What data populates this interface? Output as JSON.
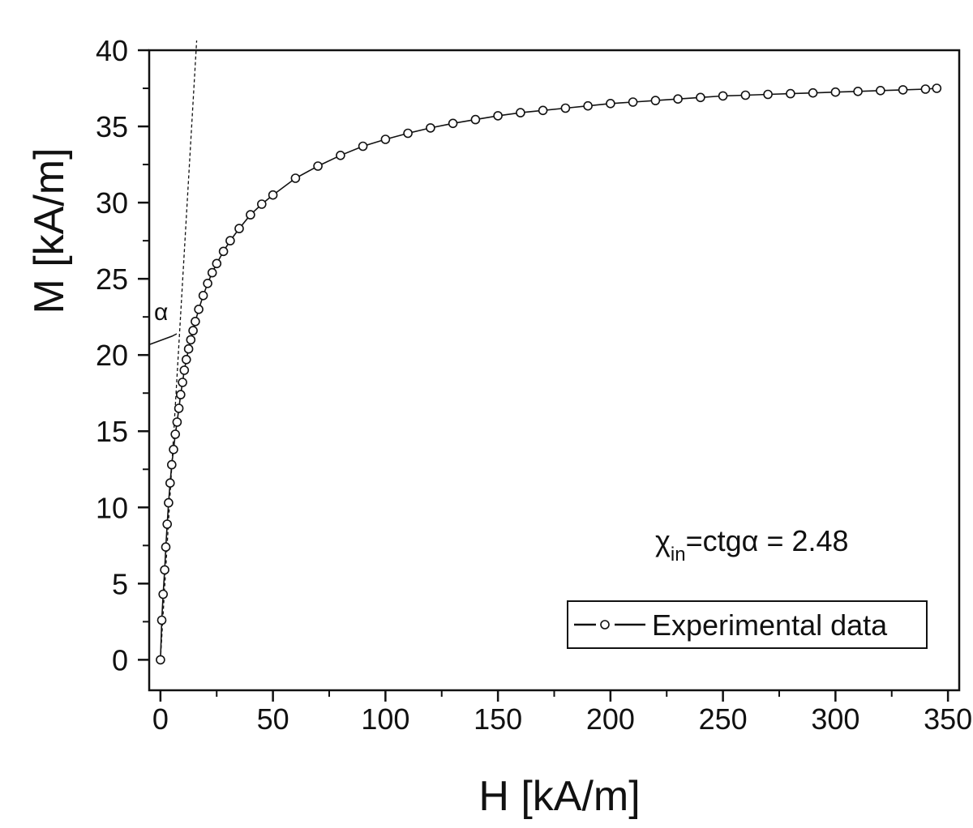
{
  "chart_data": {
    "type": "scatter",
    "xlabel": "H [kA/m]",
    "ylabel": "M [kA/m]",
    "xlim": [
      -5,
      355
    ],
    "ylim": [
      -2,
      40
    ],
    "xticks": [
      0,
      50,
      100,
      150,
      200,
      250,
      300,
      350
    ],
    "yticks": [
      0,
      5,
      10,
      15,
      20,
      25,
      30,
      35,
      40
    ],
    "x_minor_step": 25,
    "y_minor_step": 2.5,
    "grid": false,
    "legend_position": "bottom-right",
    "annotation": {
      "chi_symbol": "χ",
      "chi_subscript": "in",
      "chi_rest": "=ctgα = 2.48",
      "alpha_label": "α"
    },
    "tangent_line": {
      "slope": 2.48,
      "from": [
        0,
        0
      ],
      "to": [
        16.1,
        40
      ]
    },
    "series": [
      {
        "name": "Experimental data",
        "marker": "open-circle",
        "color": "#111111",
        "points": [
          [
            0,
            0
          ],
          [
            0.6,
            2.6
          ],
          [
            1.2,
            4.3
          ],
          [
            1.9,
            5.9
          ],
          [
            2.4,
            7.4
          ],
          [
            3,
            8.9
          ],
          [
            3.6,
            10.3
          ],
          [
            4.3,
            11.6
          ],
          [
            5,
            12.8
          ],
          [
            5.8,
            13.8
          ],
          [
            6.6,
            14.8
          ],
          [
            7.4,
            15.6
          ],
          [
            8.2,
            16.5
          ],
          [
            9,
            17.4
          ],
          [
            9.8,
            18.2
          ],
          [
            10.6,
            19
          ],
          [
            11.5,
            19.7
          ],
          [
            12.5,
            20.4
          ],
          [
            13.5,
            21
          ],
          [
            14.5,
            21.6
          ],
          [
            15.5,
            22.2
          ],
          [
            17,
            23
          ],
          [
            19,
            23.9
          ],
          [
            21,
            24.7
          ],
          [
            23,
            25.4
          ],
          [
            25,
            26
          ],
          [
            28,
            26.8
          ],
          [
            31,
            27.5
          ],
          [
            35,
            28.3
          ],
          [
            40,
            29.2
          ],
          [
            45,
            29.9
          ],
          [
            50,
            30.5
          ],
          [
            60,
            31.6
          ],
          [
            70,
            32.4
          ],
          [
            80,
            33.1
          ],
          [
            90,
            33.7
          ],
          [
            100,
            34.15
          ],
          [
            110,
            34.55
          ],
          [
            120,
            34.9
          ],
          [
            130,
            35.2
          ],
          [
            140,
            35.45
          ],
          [
            150,
            35.7
          ],
          [
            160,
            35.9
          ],
          [
            170,
            36.05
          ],
          [
            180,
            36.2
          ],
          [
            190,
            36.35
          ],
          [
            200,
            36.5
          ],
          [
            210,
            36.6
          ],
          [
            220,
            36.7
          ],
          [
            230,
            36.8
          ],
          [
            240,
            36.9
          ],
          [
            250,
            37
          ],
          [
            260,
            37.05
          ],
          [
            270,
            37.1
          ],
          [
            280,
            37.15
          ],
          [
            290,
            37.2
          ],
          [
            300,
            37.25
          ],
          [
            310,
            37.3
          ],
          [
            320,
            37.35
          ],
          [
            330,
            37.4
          ],
          [
            340,
            37.45
          ],
          [
            345,
            37.5
          ]
        ]
      }
    ]
  }
}
